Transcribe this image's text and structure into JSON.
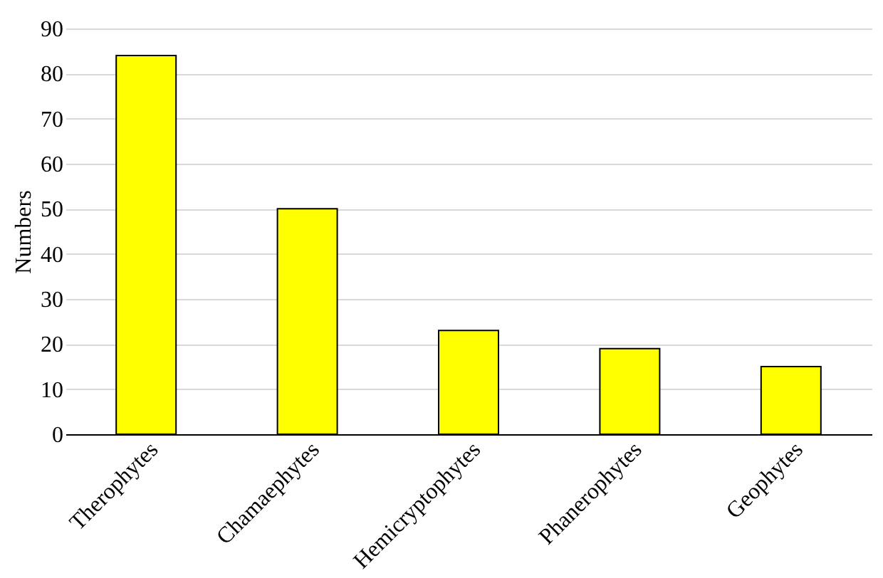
{
  "chart_data": {
    "type": "bar",
    "ylabel": "Numbers",
    "categories": [
      "Therophytes",
      "Chamaephytes",
      "Hemicryptophytes",
      "Phanerophytes",
      "Geophytes"
    ],
    "values": [
      84,
      50,
      23,
      19,
      15
    ],
    "color": "#ffff00",
    "ylim": [
      0,
      90
    ],
    "yticks": [
      0,
      10,
      20,
      30,
      40,
      50,
      60,
      70,
      80,
      90
    ],
    "grid": "y"
  }
}
